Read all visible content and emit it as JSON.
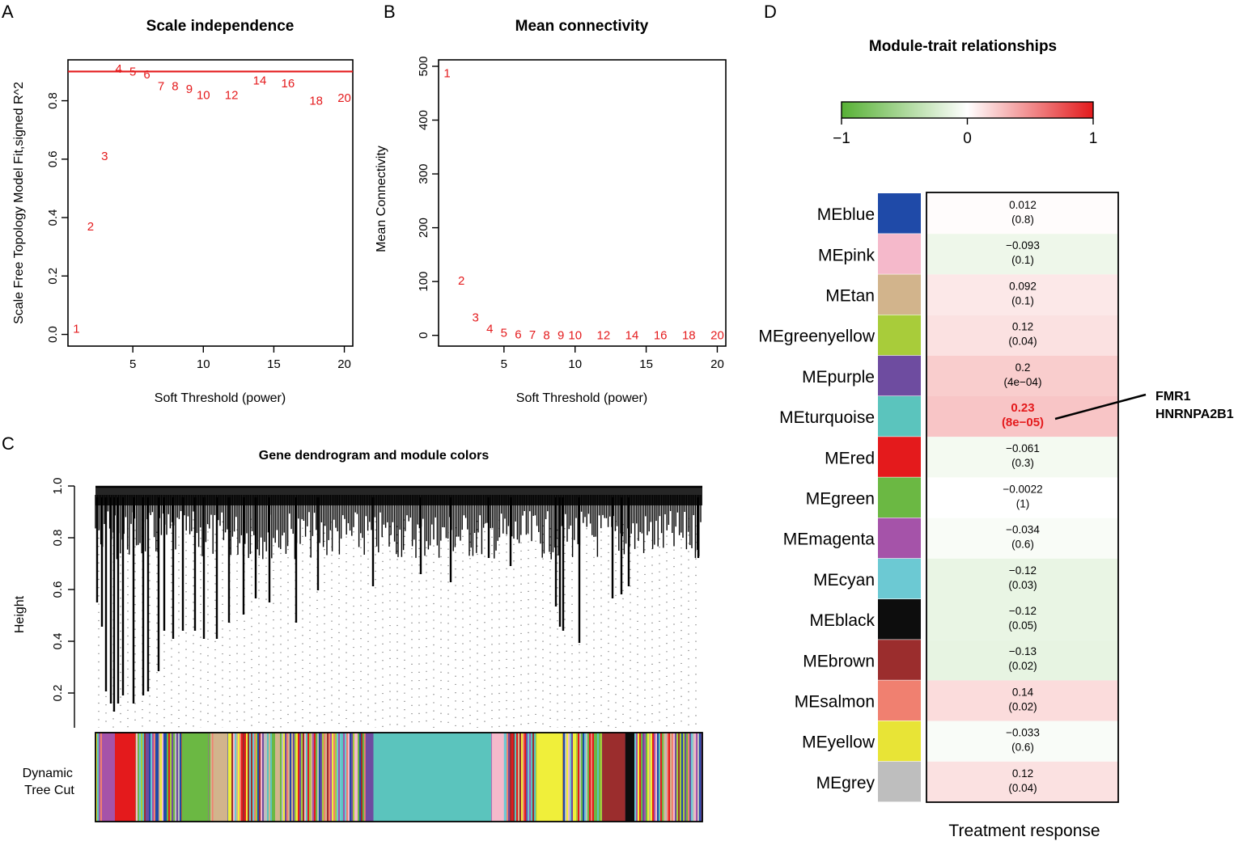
{
  "panel_letters": {
    "a": "A",
    "b": "B",
    "c": "C",
    "d": "D"
  },
  "colors": {
    "red": "#e41a1c",
    "black": "#000000",
    "green": "#57b135"
  },
  "chart_data": [
    {
      "id": "A",
      "type": "scatter",
      "title": "Scale independence",
      "xlabel": "Soft Threshold (power)",
      "ylabel": "Scale Free Topology Model Fit,signed R^2",
      "xlim": [
        0.4,
        20.6
      ],
      "ylim": [
        -0.04,
        0.94
      ],
      "xticks": [
        "5",
        "10",
        "15",
        "20"
      ],
      "xtick_values": [
        5,
        10,
        15,
        20
      ],
      "yticks": [
        "0.0",
        "0.2",
        "0.4",
        "0.6",
        "0.8"
      ],
      "ytick_values": [
        0.0,
        0.2,
        0.4,
        0.6,
        0.8
      ],
      "hline": 0.9,
      "points": [
        {
          "label": "1",
          "x": 1,
          "y": 0.02
        },
        {
          "label": "2",
          "x": 2,
          "y": 0.37
        },
        {
          "label": "3",
          "x": 3,
          "y": 0.61
        },
        {
          "label": "4",
          "x": 4,
          "y": 0.91
        },
        {
          "label": "5",
          "x": 5,
          "y": 0.9
        },
        {
          "label": "6",
          "x": 6,
          "y": 0.89
        },
        {
          "label": "7",
          "x": 7,
          "y": 0.85
        },
        {
          "label": "8",
          "x": 8,
          "y": 0.85
        },
        {
          "label": "9",
          "x": 9,
          "y": 0.84
        },
        {
          "label": "10",
          "x": 10,
          "y": 0.82
        },
        {
          "label": "12",
          "x": 12,
          "y": 0.82
        },
        {
          "label": "14",
          "x": 14,
          "y": 0.87
        },
        {
          "label": "16",
          "x": 16,
          "y": 0.86
        },
        {
          "label": "18",
          "x": 18,
          "y": 0.8
        },
        {
          "label": "20",
          "x": 20,
          "y": 0.81
        }
      ]
    },
    {
      "id": "B",
      "type": "scatter",
      "title": "Mean connectivity",
      "xlabel": "Soft Threshold (power)",
      "ylabel": "Mean Connectivity",
      "xlim": [
        0.4,
        20.6
      ],
      "ylim": [
        -20,
        512
      ],
      "xticks": [
        "5",
        "10",
        "15",
        "20"
      ],
      "xtick_values": [
        5,
        10,
        15,
        20
      ],
      "yticks": [
        "0",
        "100",
        "200",
        "300",
        "400",
        "500"
      ],
      "ytick_values": [
        0,
        100,
        200,
        300,
        400,
        500
      ],
      "points": [
        {
          "label": "1",
          "x": 1,
          "y": 487
        },
        {
          "label": "2",
          "x": 2,
          "y": 102
        },
        {
          "label": "3",
          "x": 3,
          "y": 33
        },
        {
          "label": "4",
          "x": 4,
          "y": 12
        },
        {
          "label": "5",
          "x": 5,
          "y": 5
        },
        {
          "label": "6",
          "x": 6,
          "y": 2
        },
        {
          "label": "7",
          "x": 7,
          "y": 1
        },
        {
          "label": "8",
          "x": 8,
          "y": 0.6
        },
        {
          "label": "9",
          "x": 9,
          "y": 0.4
        },
        {
          "label": "10",
          "x": 10,
          "y": 0.3
        },
        {
          "label": "12",
          "x": 12,
          "y": 0.1
        },
        {
          "label": "14",
          "x": 14,
          "y": 0.05
        },
        {
          "label": "16",
          "x": 16,
          "y": 0.03
        },
        {
          "label": "18",
          "x": 18,
          "y": 0.02
        },
        {
          "label": "20",
          "x": 20,
          "y": 0.01
        }
      ]
    },
    {
      "id": "C",
      "type": "dendrogram",
      "title": "Gene dendrogram and module colors",
      "ylabel": "Height",
      "ylim": [
        0.1,
        1.0
      ],
      "yticks": [
        "0.2",
        "0.4",
        "0.6",
        "0.8",
        "1.0"
      ],
      "ytick_values": [
        0.2,
        0.4,
        0.6,
        0.8,
        1.0
      ],
      "colorbar_label": "Dynamic Tree Cut",
      "module_blocks": [
        {
          "color": "#a553a9",
          "start": 0.012,
          "end": 0.032
        },
        {
          "color": "#e41a1c",
          "start": 0.032,
          "end": 0.066
        },
        {
          "color": "#6bb843",
          "start": 0.142,
          "end": 0.186
        },
        {
          "color": "#d2b48c",
          "start": 0.194,
          "end": 0.218
        },
        {
          "color": "#6e4ca0",
          "start": 0.445,
          "end": 0.456
        },
        {
          "color": "#5bc4bd",
          "start": 0.458,
          "end": 0.652
        },
        {
          "color": "#f5b9cb",
          "start": 0.653,
          "end": 0.673
        },
        {
          "color": "#f0ef3a",
          "start": 0.727,
          "end": 0.77
        },
        {
          "color": "#9b2d2d",
          "start": 0.835,
          "end": 0.873
        },
        {
          "color": "#0d0d0d",
          "start": 0.873,
          "end": 0.888
        }
      ]
    },
    {
      "id": "D",
      "type": "heatmap",
      "title": "Module-trait relationships",
      "legend_ticks": [
        "−1",
        "0",
        "1"
      ],
      "legend_values": [
        -1,
        0,
        1
      ],
      "column_label": "Treatment response",
      "rows": [
        {
          "module": "MEblue",
          "color": "#1f4aa8",
          "corr": 0.012,
          "corr_text": "0.012",
          "p_text": "(0.8)"
        },
        {
          "module": "MEpink",
          "color": "#f5b9cb",
          "corr": -0.093,
          "corr_text": "−0.093",
          "p_text": "(0.1)"
        },
        {
          "module": "MEtan",
          "color": "#d2b48c",
          "corr": 0.092,
          "corr_text": "0.092",
          "p_text": "(0.1)"
        },
        {
          "module": "MEgreenyellow",
          "color": "#a8cc3a",
          "corr": 0.12,
          "corr_text": "0.12",
          "p_text": "(0.04)"
        },
        {
          "module": "MEpurple",
          "color": "#6e4ca0",
          "corr": 0.2,
          "corr_text": "0.2",
          "p_text": "(4e−04)"
        },
        {
          "module": "MEturquoise",
          "color": "#5bc4bd",
          "corr": 0.23,
          "corr_text": "0.23",
          "p_text": "(8e−05)",
          "highlight": true
        },
        {
          "module": "MEred",
          "color": "#e41a1c",
          "corr": -0.061,
          "corr_text": "−0.061",
          "p_text": "(0.3)"
        },
        {
          "module": "MEgreen",
          "color": "#6bb843",
          "corr": -0.0022,
          "corr_text": "−0.0022",
          "p_text": "(1)"
        },
        {
          "module": "MEmagenta",
          "color": "#a553a9",
          "corr": -0.034,
          "corr_text": "−0.034",
          "p_text": "(0.6)"
        },
        {
          "module": "MEcyan",
          "color": "#6cc9d3",
          "corr": -0.12,
          "corr_text": "−0.12",
          "p_text": "(0.03)"
        },
        {
          "module": "MEblack",
          "color": "#0d0d0d",
          "corr": -0.12,
          "corr_text": "−0.12",
          "p_text": "(0.05)"
        },
        {
          "module": "MEbrown",
          "color": "#9b2d2d",
          "corr": -0.13,
          "corr_text": "−0.13",
          "p_text": "(0.02)"
        },
        {
          "module": "MEsalmon",
          "color": "#f08070",
          "corr": 0.14,
          "corr_text": "0.14",
          "p_text": "(0.02)"
        },
        {
          "module": "MEyellow",
          "color": "#e8e436",
          "corr": -0.033,
          "corr_text": "−0.033",
          "p_text": "(0.6)"
        },
        {
          "module": "MEgrey",
          "color": "#bebebe",
          "corr": 0.12,
          "corr_text": "0.12",
          "p_text": "(0.04)"
        }
      ],
      "annotation": [
        "FMR1",
        "HNRNPA2B1"
      ]
    }
  ]
}
